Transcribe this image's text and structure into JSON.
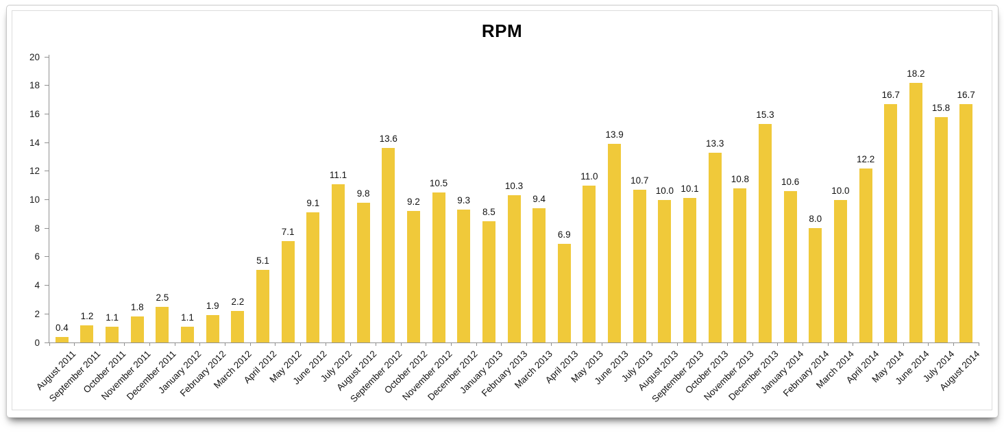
{
  "page": {
    "background": "#ffffff"
  },
  "chart_data": {
    "type": "bar",
    "title": "RPM",
    "categories": [
      "August 2011",
      "September 2011",
      "October 2011",
      "November 2011",
      "December 2011",
      "January 2012",
      "February 2012",
      "March 2012",
      "April 2012",
      "May 2012",
      "June 2012",
      "July 2012",
      "August 2012",
      "September 2012",
      "October 2012",
      "November 2012",
      "December 2012",
      "January 2013",
      "February 2013",
      "March 2013",
      "April 2013",
      "May 2013",
      "June 2013",
      "July 2013",
      "August 2013",
      "September 2013",
      "October 2013",
      "November 2013",
      "December 2013",
      "January 2014",
      "February 2014",
      "March 2014",
      "April 2014",
      "May 2014",
      "June 2014",
      "July 2014",
      "August 2014"
    ],
    "values": [
      0.4,
      1.2,
      1.1,
      1.8,
      2.5,
      1.1,
      1.9,
      2.2,
      5.1,
      7.1,
      9.1,
      11.1,
      9.8,
      13.6,
      9.2,
      10.5,
      9.3,
      8.5,
      10.3,
      9.4,
      6.9,
      11.0,
      13.9,
      10.7,
      10.0,
      10.1,
      13.3,
      10.8,
      15.3,
      10.6,
      8.0,
      10.0,
      12.2,
      16.7,
      18.2,
      15.8,
      16.7
    ],
    "xlabel": "",
    "ylabel": "",
    "ylim": [
      0,
      20
    ],
    "ytick_step": 2,
    "yticks": [
      0,
      2,
      4,
      6,
      8,
      10,
      12,
      14,
      16,
      18,
      20
    ],
    "grid": false,
    "legend_position": "none",
    "bar_color": "#F0C93A",
    "axis_color": "#8f8f8f",
    "text_color": "#111111",
    "value_label_decimals": 1
  }
}
